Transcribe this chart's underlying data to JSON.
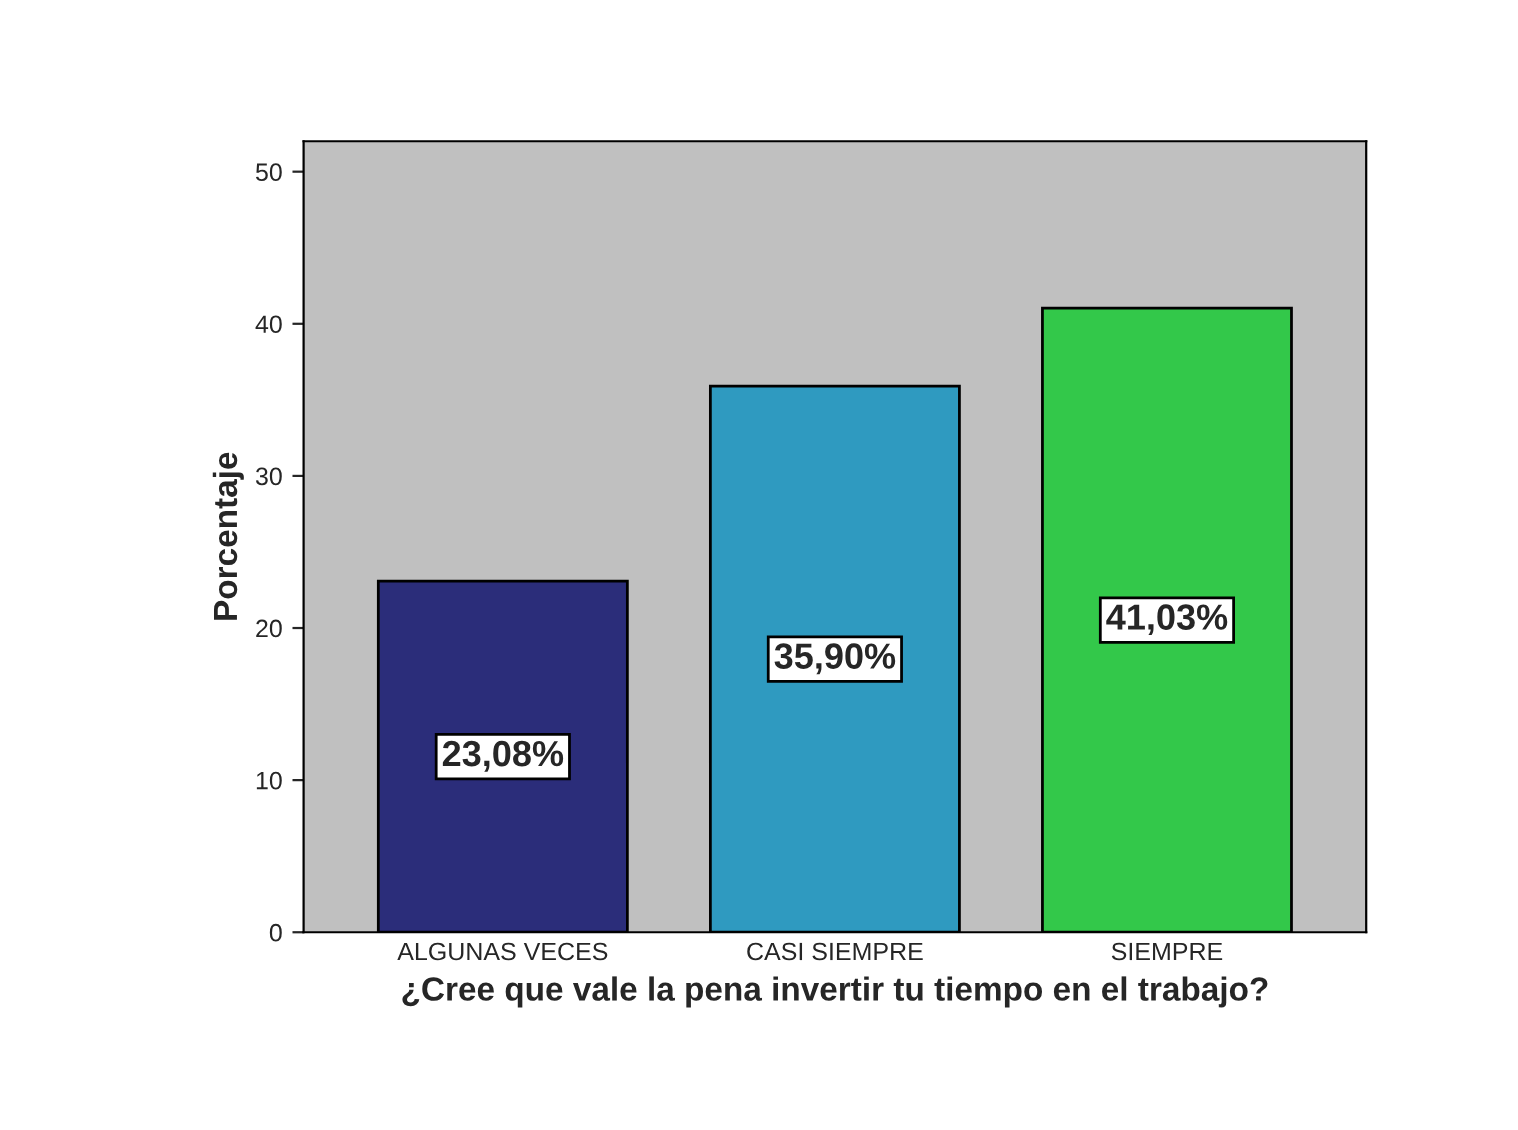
{
  "chart_data": {
    "type": "bar",
    "xlabel": "¿Cree que vale la pena invertir tu tiempo en el trabajo?",
    "ylabel": "Porcentaje",
    "categories": [
      "ALGUNAS VECES",
      "CASI SIEMPRE",
      "SIEMPRE"
    ],
    "values": [
      23.08,
      35.9,
      41.03
    ],
    "colors": [
      "#2b2d7a",
      "#2f9ac0",
      "#33c84a"
    ],
    "value_labels": [
      "23,08%",
      "35,90%",
      "41,03%"
    ],
    "ylim": [
      0,
      52
    ],
    "yticks": [
      0,
      10,
      20,
      30,
      40,
      50
    ],
    "grid": false,
    "legend": false
  }
}
